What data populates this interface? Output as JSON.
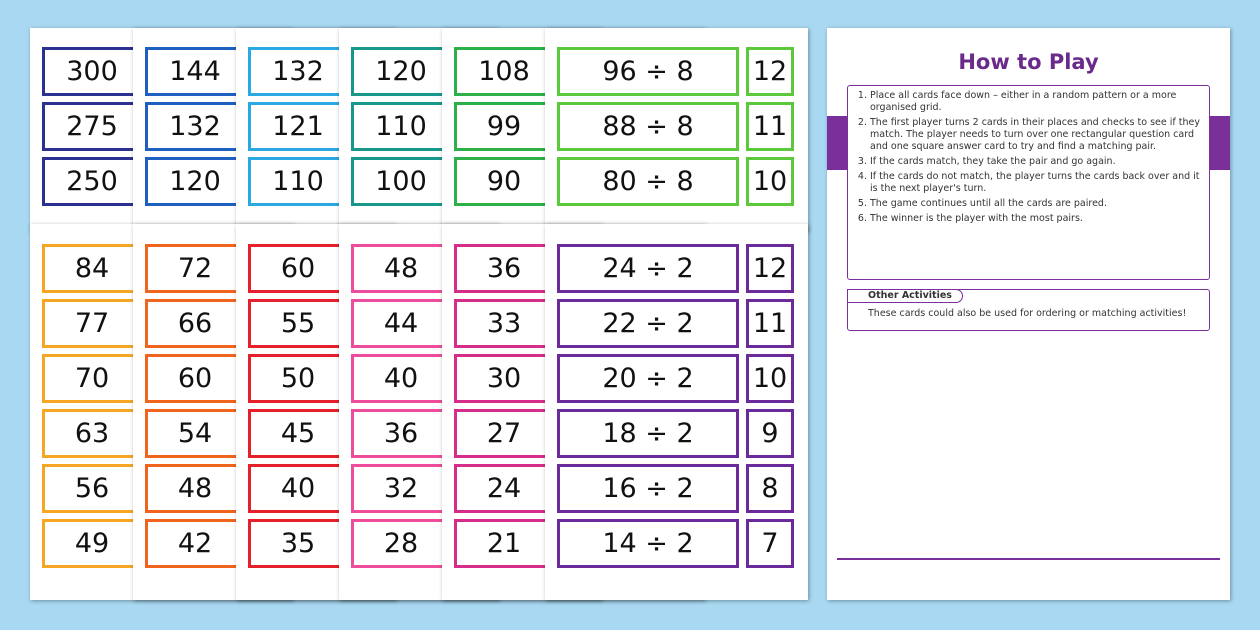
{
  "top_sheets": [
    {
      "color": "#2b3190",
      "cards": [
        300,
        275,
        250
      ]
    },
    {
      "color": "#1f5fc0",
      "cards": [
        144,
        132,
        120
      ]
    },
    {
      "color": "#2aa8e2",
      "cards": [
        132,
        121,
        110
      ]
    },
    {
      "color": "#17988a",
      "cards": [
        120,
        110,
        100
      ]
    },
    {
      "color": "#2bb04a",
      "cards": [
        108,
        99,
        90
      ]
    },
    {
      "color": "#5cc83c",
      "questions": [
        "96 ÷ 8",
        "88 ÷ 8",
        "80 ÷ 8"
      ],
      "answers": [
        12,
        11,
        10
      ]
    }
  ],
  "bottom_sheets": [
    {
      "color": "#f5a623",
      "cards": [
        84,
        77,
        70,
        63,
        56,
        49
      ]
    },
    {
      "color": "#f0641e",
      "cards": [
        72,
        66,
        60,
        54,
        48,
        42
      ]
    },
    {
      "color": "#e5202a",
      "cards": [
        60,
        55,
        50,
        45,
        40,
        35
      ]
    },
    {
      "color": "#ee4d9b",
      "cards": [
        48,
        44,
        40,
        36,
        32,
        28
      ]
    },
    {
      "color": "#d62d8a",
      "cards": [
        36,
        33,
        30,
        27,
        24,
        21
      ]
    },
    {
      "color": "#6a2a9a",
      "questions": [
        "24 ÷ 2",
        "22 ÷ 2",
        "20 ÷ 2",
        "18 ÷ 2",
        "16 ÷ 2",
        "14 ÷ 2"
      ],
      "answers": [
        12,
        11,
        10,
        9,
        8,
        7
      ]
    }
  ],
  "instructions": {
    "title": "How to Play",
    "steps": [
      "Place all cards face down – either in a random pattern or a more organised grid.",
      "The first player turns 2 cards in their places and checks to see if they match. The player needs to turn over one rectangular question card and one square answer card to try and find a matching pair.",
      "If the cards match, they take the pair and go again.",
      "If the cards do not match, the player turns the cards back over and it is the next player's turn.",
      "The game continues until all the cards are paired.",
      "The winner is the player with the most pairs."
    ],
    "other_title": "Other Activities",
    "other_text": "These cards could also be used for ordering or matching activities!"
  }
}
